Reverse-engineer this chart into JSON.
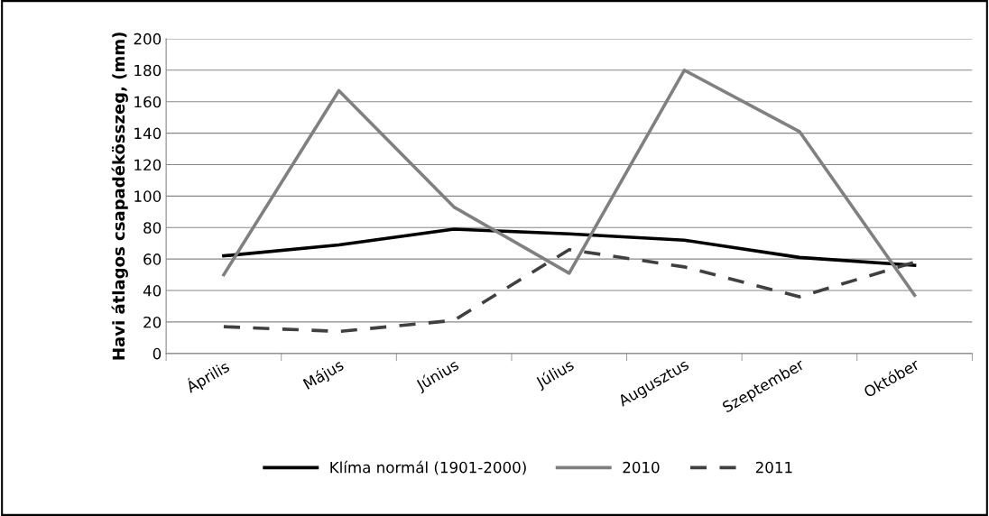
{
  "chart_data": {
    "type": "line",
    "ylabel": "Havi átlagos csapadékösszeg, (mm)",
    "categories": [
      "Április",
      "Május",
      "Június",
      "Július",
      "Augusztus",
      "Szeptember",
      "Október"
    ],
    "series": [
      {
        "name": "Klíma normál (1901-2000)",
        "color": "#000000",
        "line_style": "solid",
        "values": [
          62,
          69,
          79,
          76,
          72,
          61,
          56
        ]
      },
      {
        "name": "2010",
        "color": "#808080",
        "line_style": "solid",
        "values": [
          50,
          167,
          93,
          51,
          180,
          141,
          37
        ]
      },
      {
        "name": "2011",
        "color": "#404040",
        "line_style": "dashed",
        "values": [
          17,
          14,
          21,
          66,
          55,
          36,
          58
        ]
      }
    ],
    "ylim": [
      0,
      200
    ],
    "yticks": [
      0,
      20,
      40,
      60,
      80,
      100,
      120,
      140,
      160,
      180,
      200
    ],
    "grid": "y",
    "legend": "bottom",
    "marker": "none"
  }
}
